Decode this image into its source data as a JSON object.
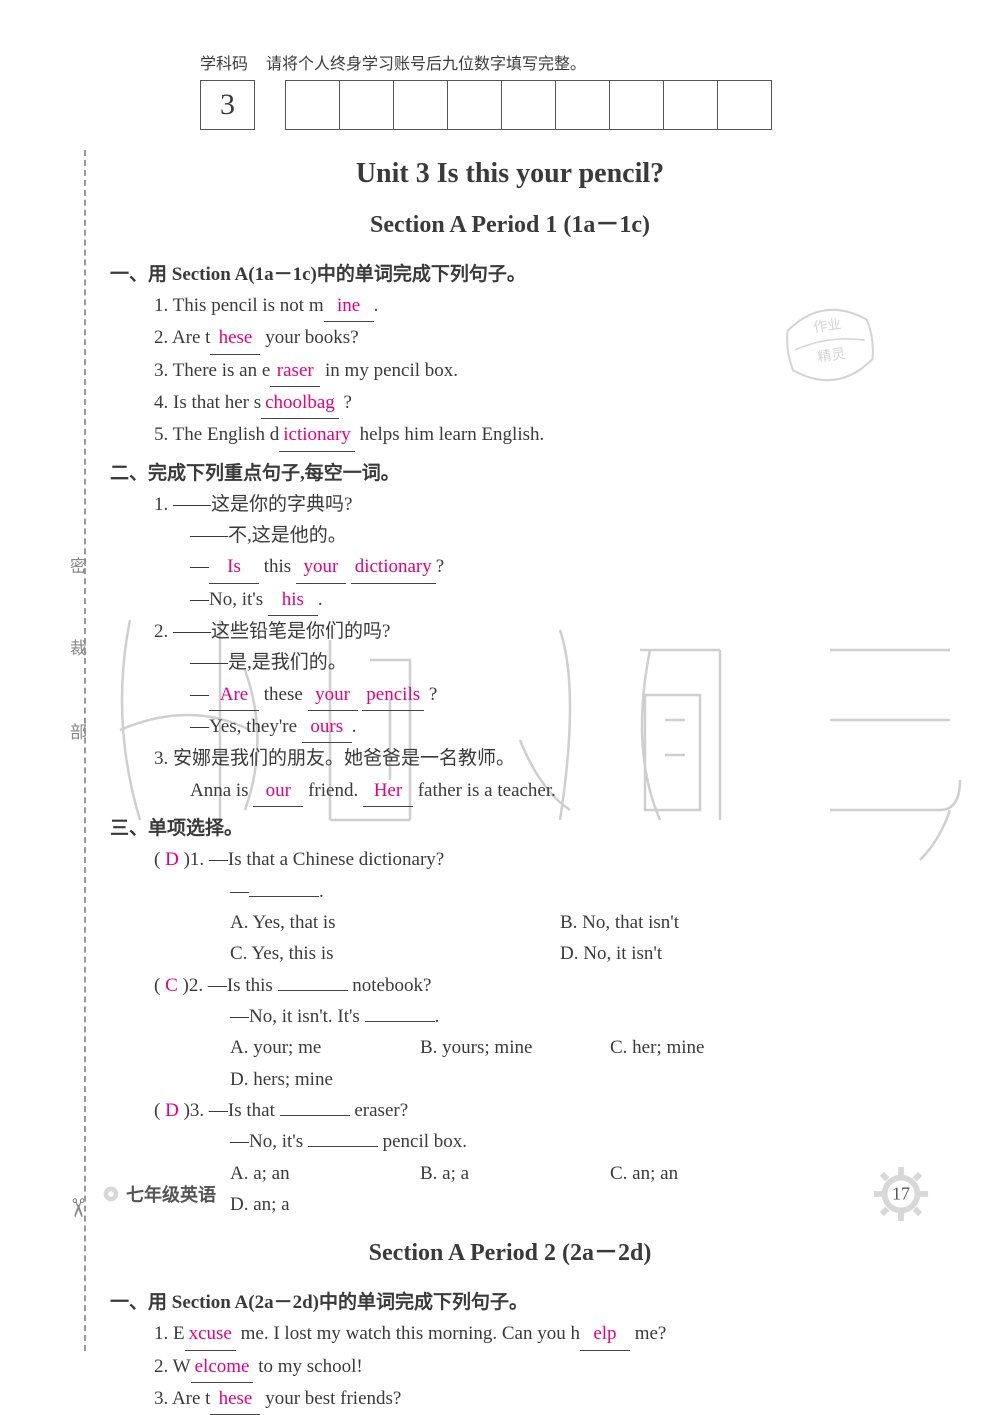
{
  "header": {
    "label_code": "学科码",
    "label_instruction": "请将个人终身学习账号后九位数字填写完整。",
    "first_box": "3",
    "box_count": 9
  },
  "unit_title": "Unit 3   Is this your pencil?",
  "section1_title": "Section A   Period 1  (1a－1c)",
  "part1": {
    "title": "一、用 Section A(1a－1c)中的单词完成下列句子。",
    "items": [
      {
        "num": "1.",
        "pre": "This pencil is not m",
        "ans": "ine",
        "post": "."
      },
      {
        "num": "2.",
        "pre": "Are t",
        "ans": "hese",
        "post": " your books?"
      },
      {
        "num": "3.",
        "pre": "There is an e",
        "ans": "raser",
        "post": " in my pencil box."
      },
      {
        "num": "4.",
        "pre": "Is that her s",
        "ans": "choolbag",
        "post": " ?"
      },
      {
        "num": "5.",
        "pre": "The English d",
        "ans": "ictionary",
        "post": " helps him learn English."
      }
    ]
  },
  "part2": {
    "title": "二、完成下列重点句子,每空一词。",
    "q1": {
      "num": "1.",
      "cn1": "——这是你的字典吗?",
      "cn2": "——不,这是他的。",
      "en1_pre": "—",
      "en1_a1": "Is",
      "en1_mid1": " this ",
      "en1_a2": "your",
      "en1_mid2": " ",
      "en1_a3": "dictionary",
      "en1_post": "?",
      "en2_pre": "—No, it's ",
      "en2_a1": "his",
      "en2_post": "."
    },
    "q2": {
      "num": "2.",
      "cn1": "——这些铅笔是你们的吗?",
      "cn2": "——是,是我们的。",
      "en1_pre": "—",
      "en1_a1": "Are",
      "en1_mid1": " these ",
      "en1_a2": "your",
      "en1_mid2": " ",
      "en1_a3": "pencils",
      "en1_post": " ?",
      "en2_pre": "—Yes, they're ",
      "en2_a1": "ours",
      "en2_post": "."
    },
    "q3": {
      "num": "3.",
      "cn1": "安娜是我们的朋友。她爸爸是一名教师。",
      "en1_pre": "Anna is ",
      "en1_a1": "our",
      "en1_mid1": " friend. ",
      "en1_a2": "Her",
      "en1_post": " father is a teacher."
    }
  },
  "part3": {
    "title": "三、单项选择。",
    "q1": {
      "ans": "D",
      "num": ")1.",
      "stem": "—Is that a Chinese dictionary?",
      "stem2_pre": "—",
      "stem2_post": ".",
      "opts": [
        "A. Yes, that is",
        "B. No, that isn't",
        "C. Yes, this is",
        "D. No, it isn't"
      ]
    },
    "q2": {
      "ans": "C",
      "num": ")2.",
      "stem_pre": "—Is this ",
      "stem_post": " notebook?",
      "stem2_pre": "—No, it isn't. It's ",
      "stem2_post": ".",
      "opts": [
        "A. your; me",
        "B. yours; mine",
        "C. her; mine",
        "D. hers; mine"
      ]
    },
    "q3": {
      "ans": "D",
      "num": ")3.",
      "stem_pre": "—Is that ",
      "stem_post": " eraser?",
      "stem2_pre": "—No, it's ",
      "stem2_post": " pencil box.",
      "opts": [
        "A. a; an",
        "B. a; a",
        "C. an; an",
        "D. an; a"
      ]
    }
  },
  "section2_title": "Section A   Period 2  (2a－2d)",
  "part1b": {
    "title": "一、用 Section A(2a－2d)中的单词完成下列句子。",
    "items": [
      {
        "num": "1.",
        "pre": "E",
        "ans": "xcuse",
        "mid": " me.  I lost my watch this morning. Can you h",
        "ans2": "elp",
        "post": " me?"
      },
      {
        "num": "2.",
        "pre": "W",
        "ans": "elcome",
        "post": " to my school!"
      },
      {
        "num": "3.",
        "pre": "Are t",
        "ans": "hese",
        "post": " your best friends?"
      }
    ]
  },
  "footer": {
    "left": "七年级英语",
    "page": "17"
  },
  "cut_labels": {
    "a": "密",
    "b": "裁",
    "c": "部"
  },
  "colors": {
    "answer": "#e6007e",
    "text": "#3a3a3a",
    "border": "#555555",
    "cutline": "#999999"
  }
}
